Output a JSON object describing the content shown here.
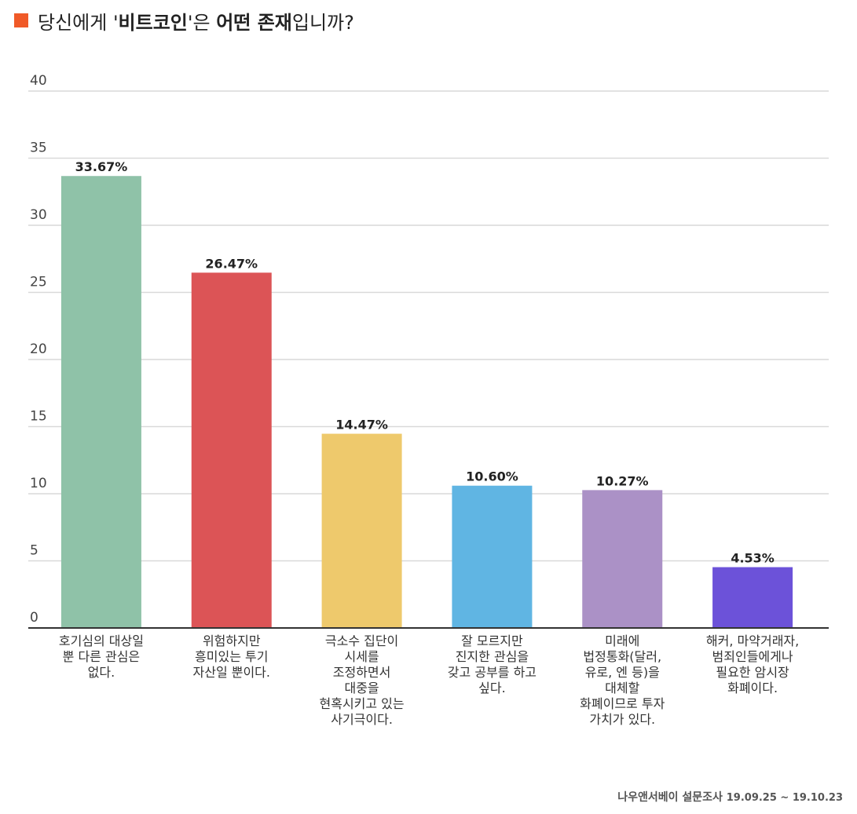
{
  "title": {
    "parts": [
      {
        "text": "당신에게 '",
        "bold": false
      },
      {
        "text": "비트코인",
        "bold": true
      },
      {
        "text": "'은 ",
        "bold": false
      },
      {
        "text": "어떤 존재",
        "bold": true
      },
      {
        "text": "입니까?",
        "bold": false
      }
    ],
    "marker_color": "#f05a28"
  },
  "source": {
    "label": "나우앤서베이 설문조사",
    "dates": "19.09.25 ~ 19.10.23"
  },
  "chart_data": {
    "type": "bar",
    "categories": [
      [
        "호기심의 대상일",
        "뿐 다른 관심은",
        "없다."
      ],
      [
        "위험하지만",
        "흥미있는 투기",
        "자산일 뿐이다."
      ],
      [
        "극소수 집단이",
        "시세를",
        "조정하면서",
        "대중을",
        "현혹시키고 있는",
        "사기극이다."
      ],
      [
        "잘 모르지만",
        "진지한 관심을",
        "갖고 공부를 하고",
        "싶다."
      ],
      [
        "미래에",
        "법정통화(달러,",
        "유로, 엔 등)을",
        "대체할",
        "화폐이므로 투자",
        "가치가 있다."
      ],
      [
        "해커, 마약거래자,",
        "범죄인들에게나",
        "필요한 암시장",
        "화폐이다."
      ]
    ],
    "values": [
      33.67,
      26.47,
      14.47,
      10.6,
      10.27,
      4.53
    ],
    "value_labels": [
      "33.67%",
      "26.47%",
      "14.47%",
      "10.60%",
      "10.27%",
      "4.53%"
    ],
    "colors": [
      "#8fc2a8",
      "#dc5456",
      "#eec96c",
      "#60b5e3",
      "#ab91c6",
      "#6c52d9"
    ],
    "ylim": [
      0,
      40
    ],
    "yticks": [
      0,
      5,
      10,
      15,
      20,
      25,
      30,
      35,
      40
    ],
    "grid": true,
    "legend": "none"
  }
}
